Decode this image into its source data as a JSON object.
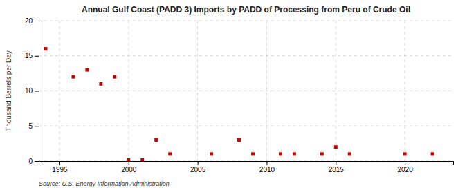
{
  "chart_data": {
    "type": "scatter",
    "title": "Annual Gulf Coast (PADD 3) Imports by PADD of Processing from Peru of Crude Oil",
    "ylabel": "Thousand Barrels per Day",
    "source": "Source: U.S. Energy Information Administration",
    "color": "#cc0000",
    "marker": "square",
    "grid": true,
    "xlim": [
      1993.5,
      2023.5
    ],
    "ylim": [
      0,
      20
    ],
    "xticks": [
      1995,
      2000,
      2005,
      2010,
      2015,
      2020
    ],
    "yticks": [
      0,
      5,
      10,
      15,
      20
    ],
    "x": [
      1994,
      1996,
      1997,
      1998,
      1999,
      2000,
      2001,
      2002,
      2003,
      2006,
      2008,
      2009,
      2011,
      2012,
      2014,
      2015,
      2016,
      2020,
      2022
    ],
    "values": [
      16.0,
      12.0,
      13.0,
      11.0,
      12.0,
      0.15,
      0.15,
      3.0,
      1.0,
      1.0,
      3.0,
      1.0,
      1.0,
      1.0,
      1.0,
      2.0,
      1.0,
      1.0,
      1.0
    ]
  }
}
